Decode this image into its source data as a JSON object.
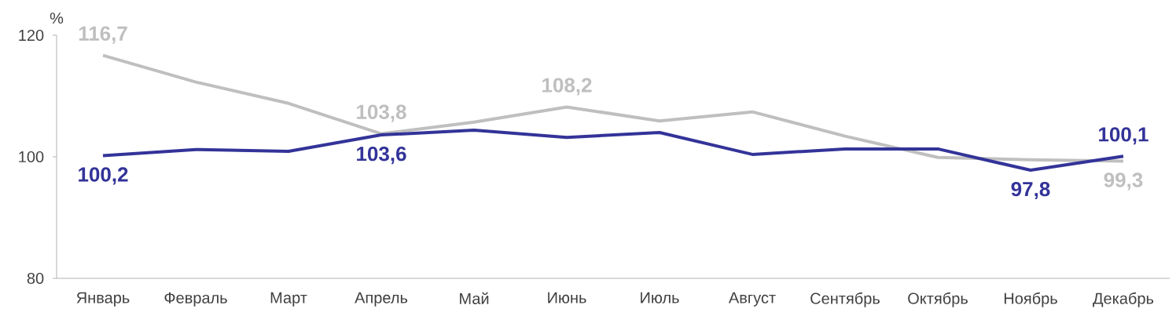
{
  "chart_data": {
    "type": "line",
    "ylabel": "%",
    "categories": [
      "Январь",
      "Февраль",
      "Март",
      "Апрель",
      "Май",
      "Июнь",
      "Июль",
      "Август",
      "Сентябрь",
      "Октябрь",
      "Ноябрь",
      "Декабрь"
    ],
    "series": [
      {
        "color": "#bfbfbf",
        "values": [
          116.7,
          112.3,
          108.8,
          103.8,
          105.7,
          108.2,
          105.9,
          107.4,
          103.4,
          99.9,
          99.5,
          99.3
        ],
        "value_labels": [
          "116,7",
          null,
          null,
          "103,8",
          null,
          "108,2",
          null,
          null,
          null,
          null,
          null,
          "99,3"
        ]
      },
      {
        "color": "#333399",
        "values": [
          100.2,
          101.2,
          100.9,
          103.6,
          104.4,
          103.2,
          104.0,
          100.4,
          101.3,
          101.3,
          97.8,
          100.1
        ],
        "value_labels": [
          "100,2",
          null,
          null,
          "103,6",
          null,
          null,
          null,
          null,
          null,
          null,
          "97,8",
          "100,1"
        ]
      }
    ],
    "ylim": [
      80,
      120
    ],
    "yticks": [
      80,
      100,
      120
    ]
  }
}
